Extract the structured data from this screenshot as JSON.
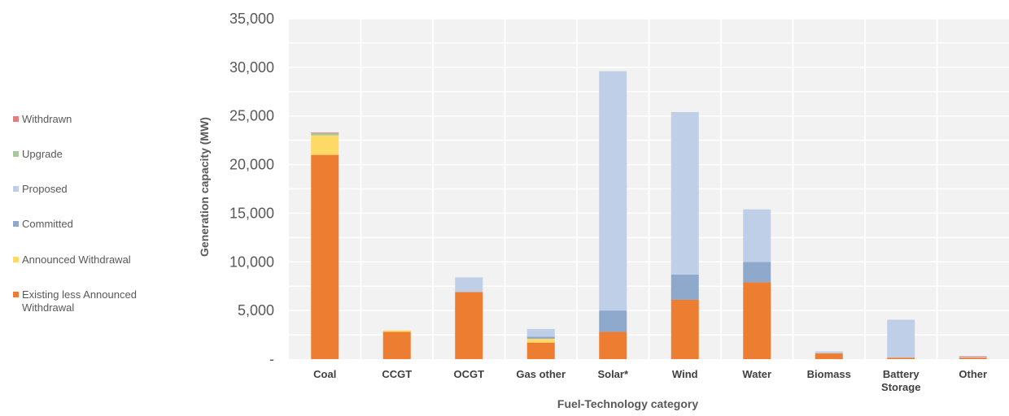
{
  "chart_data": {
    "type": "bar",
    "stacked": true,
    "title": "",
    "xlabel": "Fuel-Technology category",
    "ylabel": "Generation capacity (MW)",
    "ylim": [
      0,
      35000
    ],
    "yticks": [
      0,
      5000,
      10000,
      15000,
      20000,
      25000,
      30000,
      35000
    ],
    "ytick_labels": [
      "-",
      "5,000",
      "10,000",
      "15,000",
      "20,000",
      "25,000",
      "30,000",
      "35,000"
    ],
    "grid": true,
    "legend_position": "left",
    "categories": [
      [
        "Coal"
      ],
      [
        "CCGT"
      ],
      [
        "OCGT"
      ],
      [
        "Gas other"
      ],
      [
        "Solar*"
      ],
      [
        "Wind"
      ],
      [
        "Water"
      ],
      [
        "Biomass"
      ],
      [
        "Battery",
        "Storage"
      ],
      [
        "Other"
      ]
    ],
    "series": [
      {
        "name": "Existing less Announced Withdrawal",
        "color": "#ED7D31",
        "values": [
          21000,
          2800,
          6900,
          1700,
          2800,
          6100,
          7900,
          600,
          150,
          150
        ]
      },
      {
        "name": "Announced Withdrawal",
        "color": "#FFD966",
        "values": [
          2000,
          150,
          0,
          400,
          0,
          0,
          0,
          0,
          0,
          0
        ]
      },
      {
        "name": "Committed",
        "color": "#8EA9CB",
        "values": [
          0,
          0,
          0,
          200,
          2200,
          2600,
          2100,
          0,
          0,
          0
        ]
      },
      {
        "name": "Proposed",
        "color": "#BFCFE8",
        "values": [
          0,
          0,
          1500,
          800,
          24600,
          16700,
          5400,
          200,
          3900,
          100
        ]
      },
      {
        "name": "Upgrade",
        "color": "#A9C79A",
        "values": [
          250,
          0,
          0,
          0,
          0,
          0,
          0,
          0,
          0,
          0
        ]
      },
      {
        "name": "Withdrawn",
        "color": "#E07F7F",
        "values": [
          50,
          0,
          0,
          0,
          0,
          0,
          0,
          0,
          0,
          50
        ]
      }
    ]
  }
}
